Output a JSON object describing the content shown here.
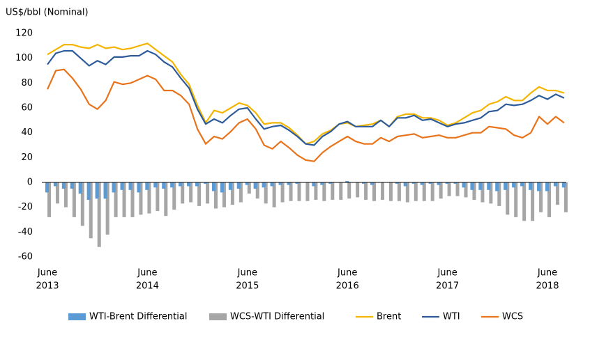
{
  "chart_data": {
    "type": "combo",
    "y_label": "US$/bbl (Nominal)",
    "categories": [
      [
        "June",
        "2013"
      ],
      null,
      null,
      null,
      null,
      null,
      null,
      null,
      null,
      null,
      null,
      null,
      [
        "June",
        "2014"
      ],
      null,
      null,
      null,
      null,
      null,
      null,
      null,
      null,
      null,
      null,
      null,
      [
        "June",
        "2015"
      ],
      null,
      null,
      null,
      null,
      null,
      null,
      null,
      null,
      null,
      null,
      null,
      [
        "June",
        "2016"
      ],
      null,
      null,
      null,
      null,
      null,
      null,
      null,
      null,
      null,
      null,
      null,
      [
        "June",
        "2017"
      ],
      null,
      null,
      null,
      null,
      null,
      null,
      null,
      null,
      null,
      null,
      null,
      [
        "June",
        "2018"
      ],
      null,
      null
    ],
    "ylim": [
      -60,
      120
    ],
    "yticks": [
      -60,
      -40,
      -20,
      0,
      20,
      40,
      60,
      80,
      100,
      120
    ],
    "series": [
      {
        "name": "WTI-Brent Differential",
        "type": "bar",
        "color": "#5b9bd5",
        "values": [
          -8,
          -3,
          -5,
          -5,
          -9,
          -14,
          -13,
          -13,
          -8,
          -6,
          -6,
          -8,
          -6,
          -4,
          -5,
          -4,
          -3,
          -3,
          -3,
          -1,
          -7,
          -8,
          -6,
          -5,
          -2,
          -5,
          -4,
          -3,
          -2,
          -2,
          -1,
          0,
          -3,
          -2,
          -1,
          0,
          1,
          0,
          -1,
          -2,
          0,
          0,
          -1,
          -3,
          -1,
          -2,
          -1,
          -2,
          -1,
          -1,
          -4,
          -6,
          -6,
          -6,
          -7,
          -6,
          -4,
          -3,
          -6,
          -7,
          -7,
          -3,
          -4
        ]
      },
      {
        "name": "WCS-WTI Differential",
        "type": "bar",
        "color": "#a6a6a6",
        "values": [
          -28,
          -17,
          -20,
          -28,
          -35,
          -45,
          -52,
          -42,
          -28,
          -28,
          -28,
          -26,
          -25,
          -23,
          -27,
          -22,
          -17,
          -16,
          -19,
          -17,
          -21,
          -20,
          -18,
          -16,
          -9,
          -13,
          -17,
          -20,
          -16,
          -15,
          -15,
          -15,
          -14,
          -15,
          -14,
          -14,
          -13,
          -12,
          -14,
          -15,
          -14,
          -15,
          -15,
          -16,
          -15,
          -15,
          -15,
          -13,
          -11,
          -11,
          -12,
          -14,
          -16,
          -17,
          -19,
          -26,
          -28,
          -31,
          -31,
          -24,
          -28,
          -18,
          -24
        ]
      },
      {
        "name": "Brent",
        "type": "line",
        "color": "#f4b400",
        "values": [
          103,
          107,
          111,
          111,
          109,
          108,
          111,
          108,
          109,
          107,
          108,
          110,
          112,
          107,
          102,
          97,
          87,
          79,
          62,
          48,
          58,
          56,
          60,
          64,
          62,
          56,
          47,
          48,
          48,
          44,
          38,
          31,
          33,
          39,
          42,
          47,
          48,
          45,
          46,
          47,
          50,
          45,
          53,
          55,
          55,
          52,
          52,
          50,
          46,
          48,
          52,
          56,
          58,
          63,
          65,
          69,
          66,
          66,
          72,
          77,
          74,
          74,
          72
        ]
      },
      {
        "name": "WTI",
        "type": "line",
        "color": "#2e5c9a",
        "values": [
          95,
          104,
          106,
          106,
          100,
          94,
          98,
          95,
          101,
          101,
          102,
          102,
          106,
          103,
          97,
          93,
          84,
          76,
          59,
          47,
          51,
          48,
          54,
          59,
          60,
          51,
          43,
          45,
          46,
          42,
          37,
          31,
          30,
          37,
          41,
          47,
          49,
          45,
          45,
          45,
          50,
          45,
          52,
          52,
          54,
          50,
          51,
          48,
          45,
          47,
          48,
          50,
          52,
          57,
          58,
          63,
          62,
          63,
          66,
          70,
          67,
          71,
          68
        ]
      },
      {
        "name": "WCS",
        "type": "line",
        "color": "#e8731a",
        "values": [
          75,
          90,
          91,
          84,
          75,
          63,
          59,
          66,
          81,
          79,
          80,
          83,
          86,
          83,
          74,
          74,
          70,
          63,
          43,
          31,
          37,
          35,
          41,
          48,
          51,
          43,
          30,
          27,
          33,
          28,
          22,
          18,
          17,
          24,
          29,
          33,
          37,
          33,
          31,
          31,
          36,
          33,
          37,
          38,
          39,
          36,
          37,
          38,
          36,
          36,
          38,
          40,
          40,
          45,
          44,
          43,
          38,
          36,
          40,
          53,
          47,
          53,
          48
        ]
      }
    ]
  }
}
